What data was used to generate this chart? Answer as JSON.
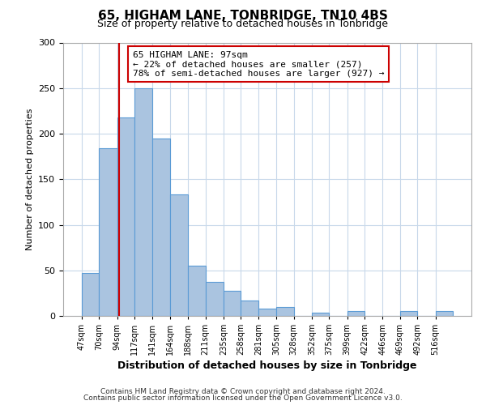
{
  "title": "65, HIGHAM LANE, TONBRIDGE, TN10 4BS",
  "subtitle": "Size of property relative to detached houses in Tonbridge",
  "xlabel": "Distribution of detached houses by size in Tonbridge",
  "ylabel": "Number of detached properties",
  "bar_labels": [
    "47sqm",
    "70sqm",
    "94sqm",
    "117sqm",
    "141sqm",
    "164sqm",
    "188sqm",
    "211sqm",
    "235sqm",
    "258sqm",
    "281sqm",
    "305sqm",
    "328sqm",
    "352sqm",
    "375sqm",
    "399sqm",
    "422sqm",
    "446sqm",
    "469sqm",
    "492sqm",
    "516sqm"
  ],
  "bar_values": [
    47,
    184,
    218,
    250,
    195,
    133,
    55,
    37,
    28,
    17,
    8,
    10,
    0,
    4,
    0,
    5,
    0,
    0,
    5,
    0,
    5
  ],
  "bar_color": "#aac4e0",
  "bar_edge_color": "#5b9bd5",
  "background_color": "#ffffff",
  "grid_color": "#c8d8ea",
  "annotation_line1": "65 HIGHAM LANE: 97sqm",
  "annotation_line2": "← 22% of detached houses are smaller (257)",
  "annotation_line3": "78% of semi-detached houses are larger (927) →",
  "annotation_box_edge": "#cc0000",
  "vline_x": 97,
  "vline_color": "#cc0000",
  "ylim": [
    0,
    300
  ],
  "yticks": [
    0,
    50,
    100,
    150,
    200,
    250,
    300
  ],
  "footnote1": "Contains HM Land Registry data © Crown copyright and database right 2024.",
  "footnote2": "Contains public sector information licensed under the Open Government Licence v3.0.",
  "bin_edges": [
    47,
    70,
    94,
    117,
    141,
    164,
    188,
    211,
    235,
    258,
    281,
    305,
    328,
    352,
    375,
    399,
    422,
    446,
    469,
    492,
    516,
    539
  ]
}
